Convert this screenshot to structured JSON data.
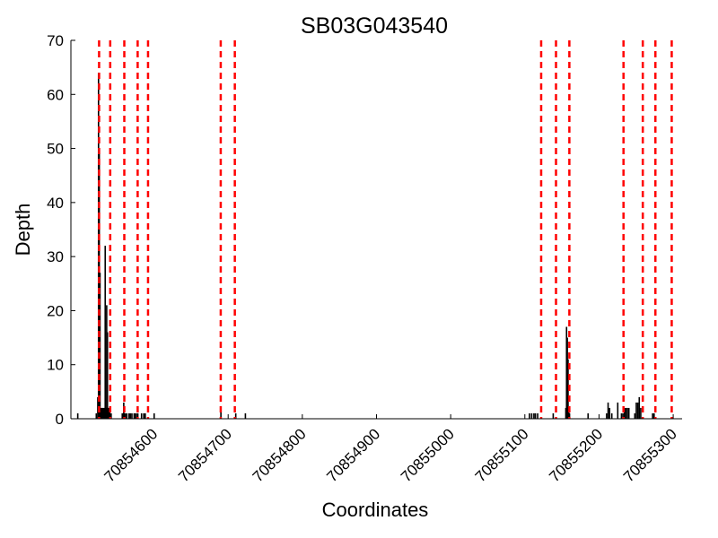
{
  "chart_data": {
    "type": "bar",
    "title": "SB03G043540",
    "xlabel": "Coordinates",
    "ylabel": "Depth",
    "xlim": [
      70854488,
      70855312
    ],
    "ylim": [
      0,
      70
    ],
    "x_ticks": [
      70854600,
      70854700,
      70854800,
      70854900,
      70855000,
      70855100,
      70855200,
      70855300
    ],
    "y_ticks": [
      0,
      10,
      20,
      30,
      40,
      50,
      60,
      70
    ],
    "grid": false,
    "bar_color": "#000000",
    "marker_color": "#ff0000",
    "depth": {
      "x": [
        70854497,
        70854522,
        70854524,
        70854525,
        70854526,
        70854527,
        70854528,
        70854529,
        70854530,
        70854531,
        70854532,
        70854533,
        70854534,
        70854535,
        70854536,
        70854537,
        70854538,
        70854539,
        70854540,
        70854541,
        70854542,
        70854557,
        70854558,
        70854559,
        70854560,
        70854561,
        70854563,
        70854566,
        70854568,
        70854570,
        70854573,
        70854574,
        70854576,
        70854578,
        70854583,
        70854586,
        70854588,
        70854600,
        70854690,
        70854710,
        70854723,
        70855106,
        70855109,
        70855112,
        70855114,
        70855117,
        70855138,
        70855155,
        70855156,
        70855157,
        70855158,
        70855159,
        70855160,
        70855185,
        70855210,
        70855212,
        70855214,
        70855217,
        70855225,
        70855230,
        70855232,
        70855234,
        70855236,
        70855238,
        70855240,
        70855248,
        70855250,
        70855252,
        70855254,
        70855256,
        70855272,
        70855274
      ],
      "y": [
        1,
        1,
        4,
        64,
        50,
        27,
        2,
        2,
        2,
        2,
        2,
        2,
        32,
        2,
        21,
        16,
        2,
        2,
        2,
        1,
        1,
        1,
        1,
        3,
        1,
        1,
        1,
        1,
        1,
        1,
        1,
        1,
        1,
        1,
        1,
        1,
        1,
        1,
        2,
        1,
        1,
        1,
        1,
        1,
        1,
        1,
        1,
        2,
        17,
        15,
        11,
        2,
        1,
        1,
        1,
        3,
        2,
        1,
        3,
        1,
        1,
        2,
        2,
        2,
        2,
        1,
        3,
        3,
        4,
        2,
        1,
        1
      ]
    },
    "markers": [
      70854526,
      70854541,
      70854560,
      70854578,
      70854592,
      70854690,
      70854709,
      70855122,
      70855142,
      70855160,
      70855233,
      70855259,
      70855276,
      70855298
    ]
  }
}
